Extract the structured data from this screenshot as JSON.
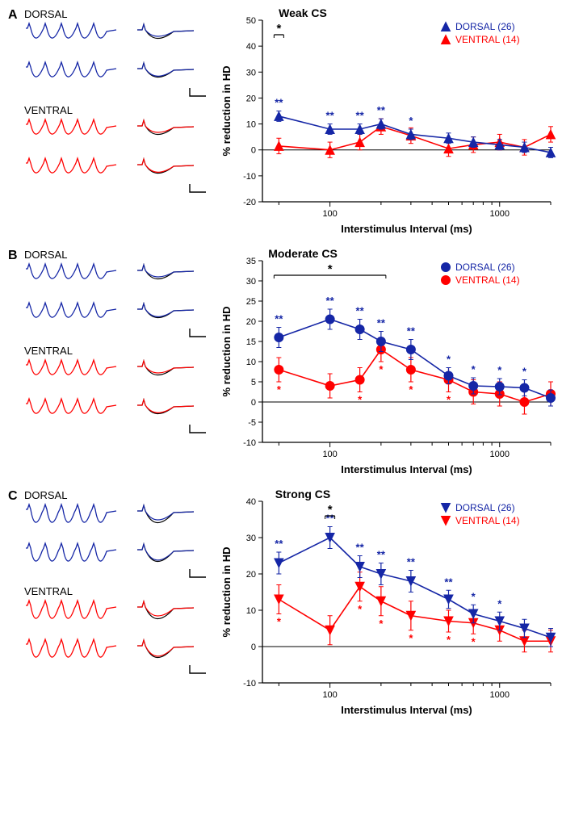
{
  "colors": {
    "dorsal": "#1526a6",
    "ventral": "#ff0000",
    "black": "#000000",
    "background": "#ffffff",
    "axis": "#000000"
  },
  "typography": {
    "panel_letter_fontsize": 16,
    "title_fontsize": 14,
    "label_fontsize": 13,
    "axis_label_fontsize": 13,
    "tick_fontsize": 11,
    "legend_fontsize": 12,
    "sig_fontsize": 13
  },
  "trace_labels": {
    "dorsal": "DORSAL",
    "ventral": "VENTRAL"
  },
  "xaxis": {
    "label": "Interstimulus Interval (ms)",
    "ticks_major": [
      100,
      1000
    ],
    "ticks_minor": [
      50,
      200,
      300,
      400,
      500,
      600,
      700,
      800,
      900,
      2000
    ],
    "type": "log",
    "xlim": [
      40,
      2000
    ]
  },
  "yaxis_label": "% reduction in HD",
  "panels": [
    {
      "letter": "A",
      "title": "Weak CS",
      "legend": {
        "dorsal": "DORSAL (26)",
        "ventral": "VENTRAL (14)"
      },
      "marker": "triangle-up",
      "ylim": [
        -20,
        50
      ],
      "ytick_step": 10,
      "x": [
        50,
        100,
        150,
        200,
        300,
        500,
        700,
        1000,
        1400,
        2000
      ],
      "dorsal": {
        "y": [
          13,
          8,
          8,
          10,
          6,
          4.5,
          3,
          2,
          1,
          -1
        ],
        "err": [
          2,
          2,
          2,
          2,
          2,
          2,
          2,
          2,
          2,
          2
        ],
        "sig": [
          "**",
          "**",
          "**",
          "**",
          "*",
          "",
          "",
          "",
          "",
          ""
        ]
      },
      "ventral": {
        "y": [
          1.5,
          0,
          3,
          9,
          5.5,
          0.5,
          2,
          3,
          1,
          6
        ],
        "err": [
          3,
          3,
          3,
          3,
          3,
          3,
          3,
          3,
          3,
          3
        ],
        "sig": [
          "",
          "",
          "",
          "",
          "",
          "",
          "",
          "",
          "",
          ""
        ]
      },
      "between_sig": {
        "x_from": 50,
        "x_to": 50,
        "label": "*"
      }
    },
    {
      "letter": "B",
      "title": "Moderate CS",
      "legend": {
        "dorsal": "DORSAL (26)",
        "ventral": "VENTRAL (14)"
      },
      "marker": "circle",
      "ylim": [
        -10,
        35
      ],
      "ytick_step": 5,
      "x": [
        50,
        100,
        150,
        200,
        300,
        500,
        700,
        1000,
        1400,
        2000
      ],
      "dorsal": {
        "y": [
          16,
          20.5,
          18,
          15,
          13,
          6.5,
          4,
          3.8,
          3.5,
          1
        ],
        "err": [
          2.5,
          2.5,
          2.5,
          2.5,
          2.5,
          2,
          2,
          2,
          2,
          2
        ],
        "sig": [
          "**",
          "**",
          "**",
          "**",
          "**",
          "*",
          "*",
          "*",
          "*",
          ""
        ]
      },
      "ventral": {
        "y": [
          8,
          4,
          5.5,
          13,
          8,
          5.5,
          2.5,
          2,
          0,
          2
        ],
        "err": [
          3,
          3,
          3,
          3,
          3,
          3,
          3,
          3,
          3,
          3
        ],
        "sig": [
          "*",
          "",
          "*",
          "*",
          "*",
          "*",
          "",
          "",
          "",
          ""
        ]
      },
      "between_sig": {
        "x_from": 50,
        "x_to": 200,
        "label": "*"
      }
    },
    {
      "letter": "C",
      "title": "Strong CS",
      "legend": {
        "dorsal": "DORSAL (26)",
        "ventral": "VENTRAL (14)"
      },
      "marker": "triangle-down",
      "ylim": [
        -10,
        40
      ],
      "ytick_step": 10,
      "x": [
        50,
        100,
        150,
        200,
        300,
        500,
        700,
        1000,
        1400,
        2000
      ],
      "dorsal": {
        "y": [
          23,
          30,
          22,
          20,
          18,
          13,
          9,
          7,
          5,
          2.5
        ],
        "err": [
          3,
          3,
          3,
          3,
          3,
          2.5,
          2.5,
          2.5,
          2.5,
          2.5
        ],
        "sig": [
          "**",
          "**",
          "**",
          "**",
          "**",
          "**",
          "*",
          "*",
          "",
          ""
        ]
      },
      "ventral": {
        "y": [
          13,
          4.5,
          16.5,
          12.5,
          8.5,
          7,
          6.5,
          4.5,
          1.5,
          1.5
        ],
        "err": [
          4,
          4,
          4,
          4,
          4,
          3,
          3,
          3,
          3,
          3
        ],
        "sig": [
          "*",
          "",
          "*",
          "*",
          "*",
          "*",
          "*",
          "",
          "",
          ""
        ]
      },
      "between_sig": {
        "x_from": 100,
        "x_to": 100,
        "label": "*"
      }
    }
  ]
}
